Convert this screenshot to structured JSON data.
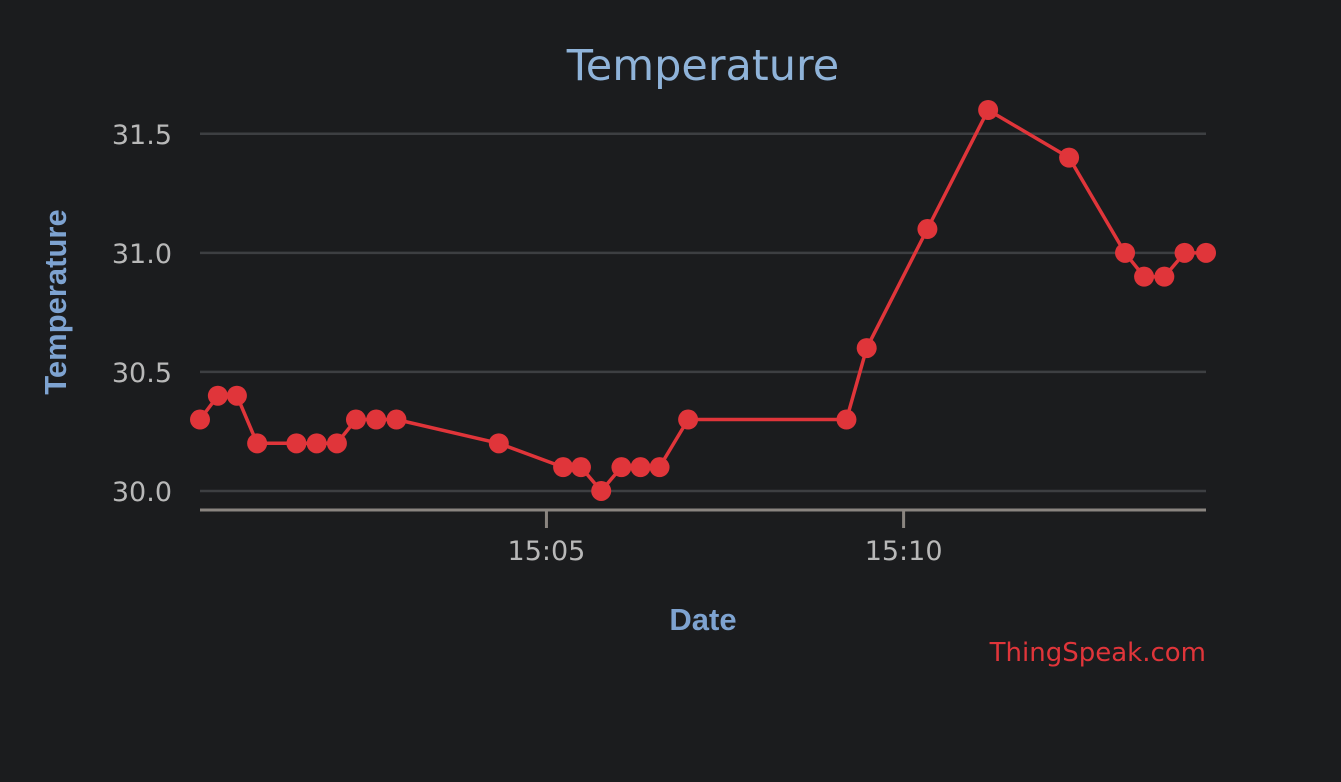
{
  "colors": {
    "background": "#1b1c1e",
    "series": "#e0353a",
    "title": "#8fb3d9",
    "axis_title": "#7ea3d1",
    "tick_label": "#b8b8b8",
    "credit": "#e0353a"
  },
  "credit": "ThingSpeak.com",
  "chart_data": {
    "type": "line",
    "title": "Temperature",
    "xlabel": "Date",
    "ylabel": "Temperature",
    "x_axis_type": "time",
    "xlim": [
      "15:00:09",
      "15:14:14"
    ],
    "ylim": [
      29.92,
      31.6
    ],
    "yticks": [
      30.0,
      30.5,
      31.0,
      31.5
    ],
    "ytick_labels": [
      "30.0",
      "30.5",
      "31.0",
      "31.5"
    ],
    "xticks": [
      "15:05",
      "15:10"
    ],
    "grid": true,
    "legend": "none",
    "series": [
      {
        "x": [
          "15:00:09",
          "15:00:24",
          "15:00:40",
          "15:00:57",
          "15:01:30",
          "15:01:47",
          "15:02:04",
          "15:02:20",
          "15:02:37",
          "15:02:54",
          "15:04:20",
          "15:05:14",
          "15:05:29",
          "15:05:46",
          "15:06:03",
          "15:06:19",
          "15:06:35",
          "15:06:59",
          "15:09:12",
          "15:09:29",
          "15:10:20",
          "15:11:11",
          "15:12:19",
          "15:13:06",
          "15:13:22",
          "15:13:39",
          "15:13:56",
          "15:14:14"
        ],
        "y": [
          30.3,
          30.4,
          30.4,
          30.2,
          30.2,
          30.2,
          30.2,
          30.3,
          30.3,
          30.3,
          30.2,
          30.1,
          30.1,
          30.0,
          30.1,
          30.1,
          30.1,
          30.3,
          30.3,
          30.6,
          31.1,
          31.6,
          31.4,
          31.0,
          30.9,
          30.9,
          31.0,
          31.0
        ]
      }
    ]
  }
}
